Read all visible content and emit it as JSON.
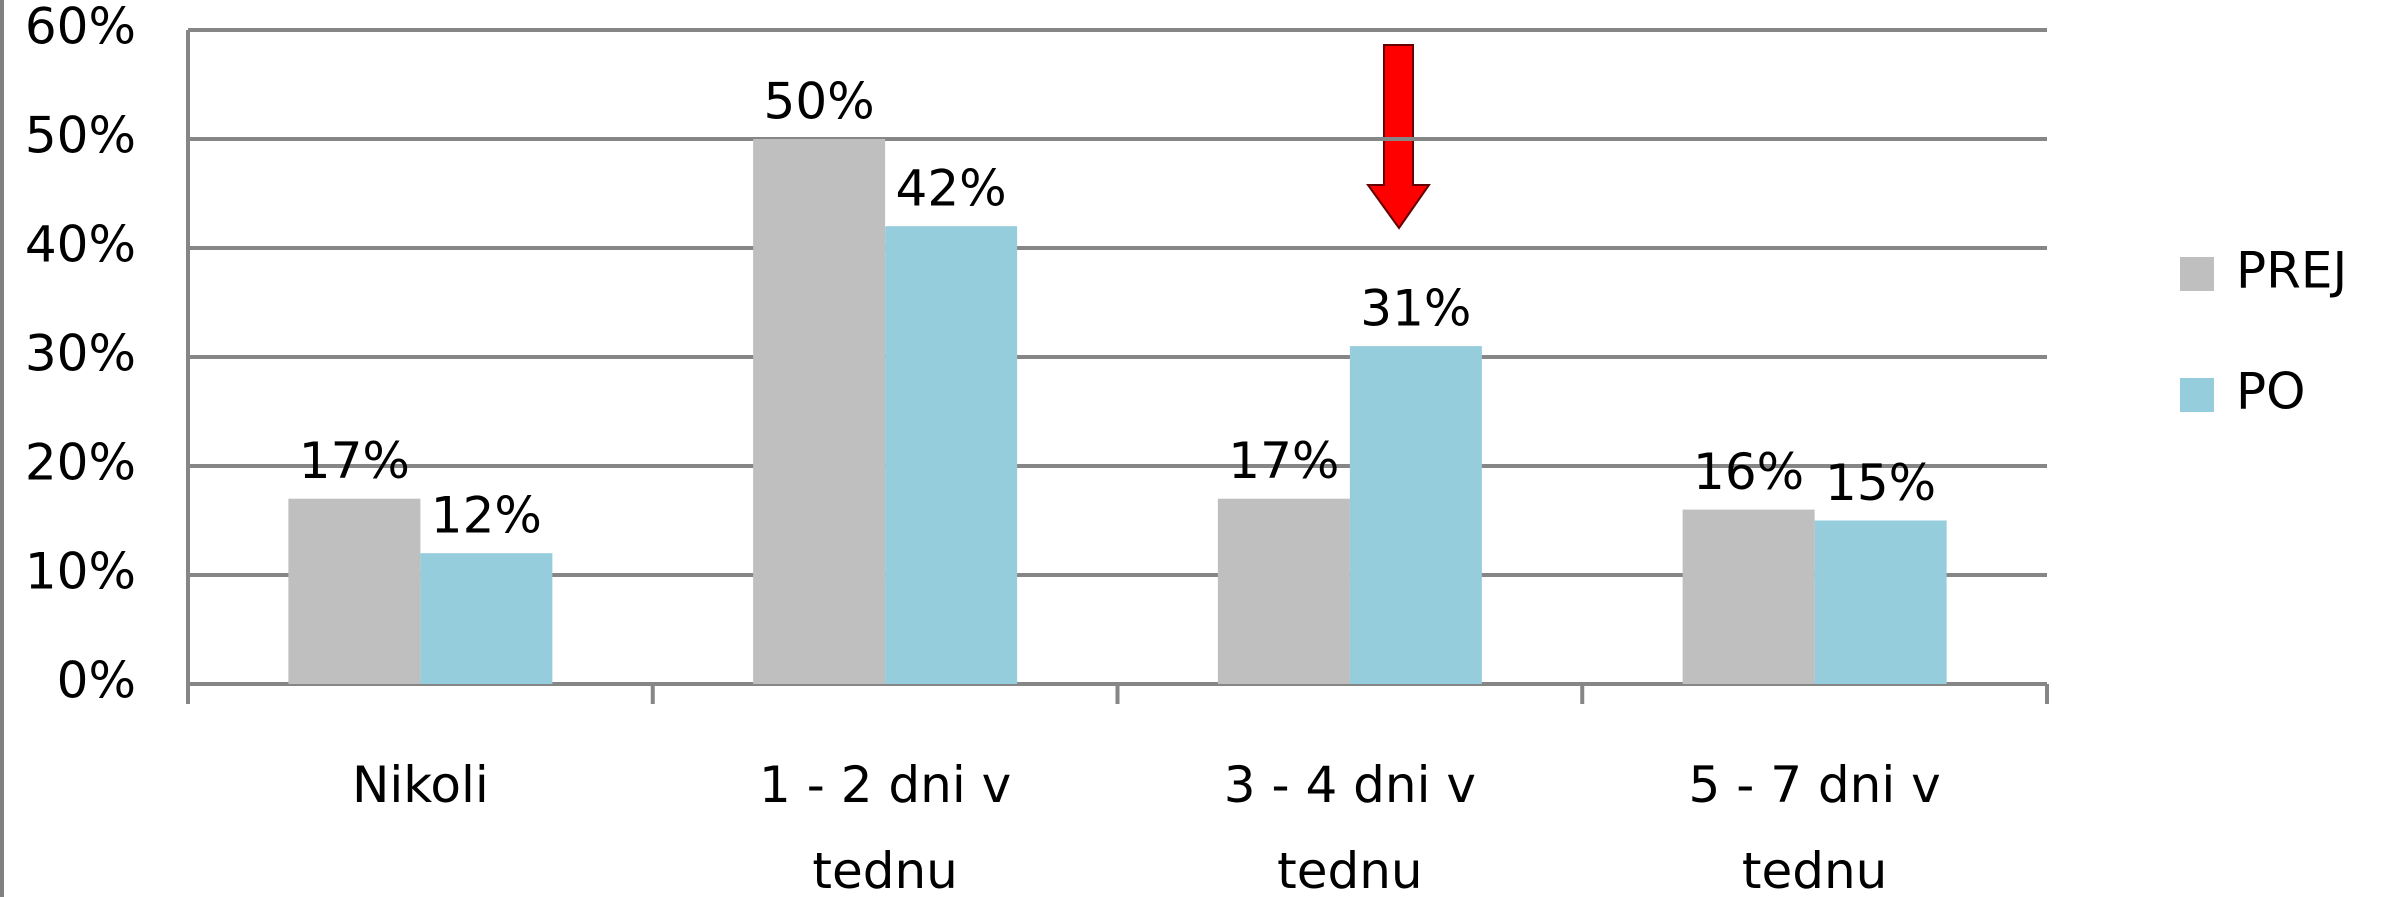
{
  "chart_data": {
    "type": "bar",
    "categories": [
      "Nikoli",
      "1 - 2 dni v tednu",
      "3 - 4 dni v tednu",
      "5 - 7 dni v tednu"
    ],
    "series": [
      {
        "name": "PREJ",
        "color": "#bfbfbf",
        "values": [
          17,
          50,
          17,
          16
        ],
        "value_labels": [
          "17%",
          "50%",
          "17%",
          "16%"
        ]
      },
      {
        "name": "PO",
        "color": "#96cddc",
        "values": [
          12,
          42,
          31,
          15
        ],
        "value_labels": [
          "12%",
          "42%",
          "31%",
          "15%"
        ]
      }
    ],
    "ylim": [
      0,
      60
    ],
    "yticks": [
      {
        "value": 0,
        "label": "0%"
      },
      {
        "value": 10,
        "label": "10%"
      },
      {
        "value": 20,
        "label": "20%"
      },
      {
        "value": 30,
        "label": "30%"
      },
      {
        "value": 40,
        "label": "40%"
      },
      {
        "value": 50,
        "label": "50%"
      },
      {
        "value": 60,
        "label": "60%"
      }
    ],
    "grid": true,
    "legend": "right"
  }
}
